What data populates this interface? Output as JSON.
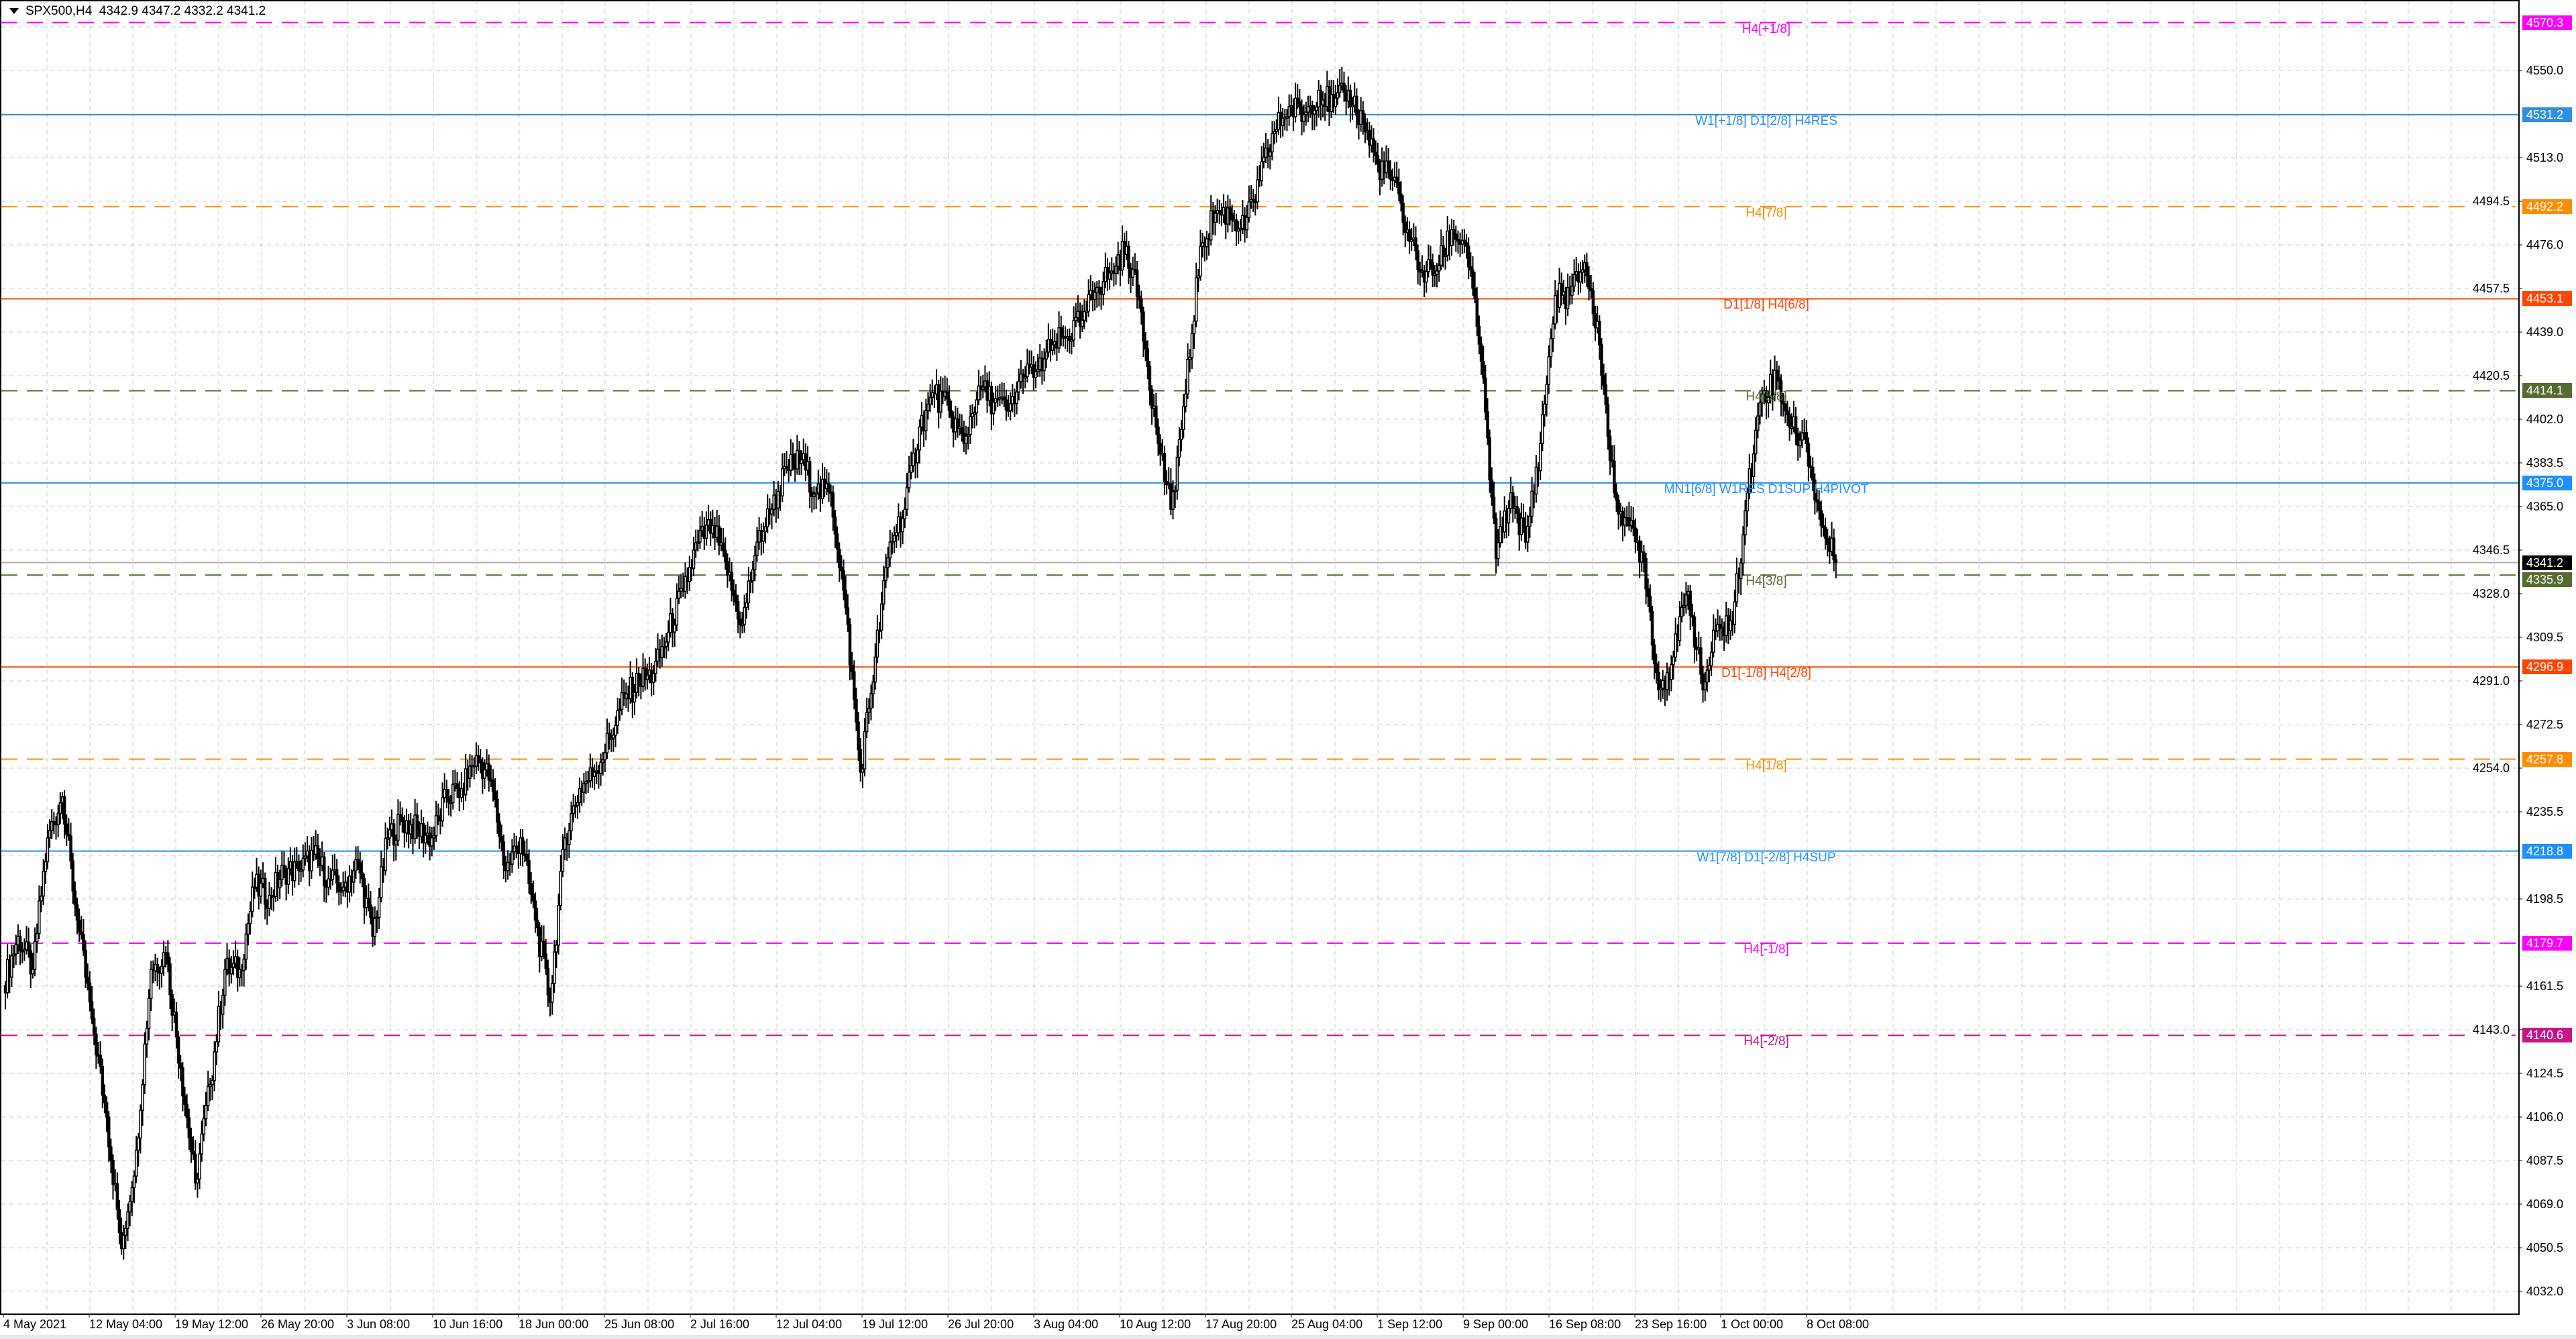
{
  "header": {
    "symbol": "SPX500,H4",
    "ohlc": "4342.9 4347.2 4332.2 4341.2",
    "menu_icon": "triangle-down-icon"
  },
  "chart_data": {
    "type": "candlestick",
    "symbol": "SPX500",
    "timeframe": "H4",
    "ylim": [
      4020,
      4580
    ],
    "grid": true,
    "last_price": 4341.2,
    "last_price_label": "4341.2",
    "approx_close_path": [
      4161.7,
      4182.6,
      4168.6,
      4224.4,
      4241.8,
      4189.5,
      4147.7,
      4105.9,
      4050.1,
      4091.9,
      4168.6,
      4175.6,
      4126.8,
      4078,
      4119.8,
      4168.6,
      4168.6,
      4203.5,
      4200,
      4210.5,
      4210.5,
      4217.4,
      4207,
      4203.5,
      4214,
      4182.6,
      4224.4,
      4231.4,
      4227.9,
      4224.4,
      4241.8,
      4245.3,
      4259.3,
      4248.8,
      4210.5,
      4224.4,
      4189.5,
      4154.7,
      4224.4,
      4245.3,
      4252.3,
      4266.2,
      4283.7,
      4290.6,
      4294.1,
      4311.6,
      4329,
      4349.9,
      4356.9,
      4336,
      4315,
      4349.9,
      4363.8,
      4381.3,
      4384.8,
      4370.8,
      4370.8,
      4322,
      4252.3,
      4301.1,
      4349.9,
      4363.8,
      4398.7,
      4412.7,
      4405.7,
      4391.7,
      4416.1,
      4409.2,
      4405.7,
      4419.6,
      4423.1,
      4433.6,
      4437.1,
      4444,
      4458,
      4464.9,
      4475.4,
      4447.5,
      4398.7,
      4363.8,
      4412.7,
      4475.4,
      4489.3,
      4489.3,
      4482.4,
      4503.3,
      4524.2,
      4534.7,
      4531.2,
      4541.6,
      4534.7,
      4541.6,
      4527.7,
      4510.3,
      4503.3,
      4482.4,
      4464.9,
      4464.9,
      4482.4,
      4475.4,
      4426.6,
      4342.9,
      4370.8,
      4349.9,
      4391.7,
      4454.5,
      4454.5,
      4468.4,
      4433.6,
      4370.8,
      4356.9,
      4342.9,
      4287.2,
      4301.1,
      4329,
      4287.2,
      4315,
      4315,
      4370.8,
      4412.7,
      4419.6,
      4398.7,
      4391.7,
      4356.9,
      4341.2
    ],
    "y_ticks": [
      "4550.0",
      "4513.0",
      "4494.5",
      "4476.0",
      "4457.5",
      "4439.0",
      "4420.5",
      "4402.0",
      "4383.5",
      "4365.0",
      "4346.5",
      "4328.0",
      "4309.5",
      "4291.0",
      "4272.5",
      "4254.0",
      "4235.5",
      "4198.5",
      "4161.5",
      "4143.0",
      "4124.5",
      "4106.0",
      "4087.5",
      "4069.0",
      "4050.5",
      "4032.0"
    ],
    "x_ticks": [
      "4 May 2021",
      "12 May 04:00",
      "19 May 12:00",
      "26 May 20:00",
      "3 Jun 08:00",
      "10 Jun 16:00",
      "18 Jun 00:00",
      "25 Jun 08:00",
      "2 Jul 16:00",
      "12 Jul 04:00",
      "19 Jul 12:00",
      "26 Jul 20:00",
      "3 Aug 04:00",
      "10 Aug 12:00",
      "17 Aug 20:00",
      "25 Aug 04:00",
      "1 Sep 12:00",
      "9 Sep 00:00",
      "16 Sep 08:00",
      "23 Sep 16:00",
      "1 Oct 00:00",
      "8 Oct 08:00"
    ],
    "levels": [
      {
        "price": 4570.3,
        "price_label": "4570.3",
        "label": "H4[+1/8]",
        "color": "#ff00ff",
        "style": "dashed"
      },
      {
        "price": 4531.2,
        "price_label": "4531.2",
        "label": "W1[+1/8] D1[2/8] H4RES",
        "color": "#2f8fe0",
        "style": "solid"
      },
      {
        "price": 4492.2,
        "price_label": "4492.2",
        "label": "H4[7/8]",
        "color": "#ff8c00",
        "style": "dashed"
      },
      {
        "price": 4453.1,
        "price_label": "4453.1",
        "label": "D1[1/8] H4[6/8]",
        "color": "#ff4500",
        "style": "solid"
      },
      {
        "price": 4414.1,
        "price_label": "4414.1",
        "label": "H4[5/8]",
        "color": "#556b2f",
        "style": "dashed"
      },
      {
        "price": 4375.0,
        "price_label": "4375.0",
        "label": "MN1[6/8] W1RES D1SUP H4PIVOT",
        "color": "#1e90ff",
        "style": "solid"
      },
      {
        "price": 4335.9,
        "price_label": "4335.9",
        "label": "H4[3/8]",
        "color": "#556b2f",
        "style": "dashed"
      },
      {
        "price": 4296.9,
        "price_label": "4296.9",
        "label": "D1[-1/8] H4[2/8]",
        "color": "#ff4500",
        "style": "solid"
      },
      {
        "price": 4257.8,
        "price_label": "4257.8",
        "label": "H4[1/8]",
        "color": "#ff8c00",
        "style": "dashed"
      },
      {
        "price": 4218.8,
        "price_label": "4218.8",
        "label": "W1[7/8] D1[-2/8] H4SUP",
        "color": "#1e90ff",
        "style": "solid"
      },
      {
        "price": 4179.7,
        "price_label": "4179.7",
        "label": "H4[-1/8]",
        "color": "#ff00ff",
        "style": "dashed"
      },
      {
        "price": 4140.6,
        "price_label": "4140.6",
        "label": "H4[-2/8]",
        "color": "#c71585",
        "style": "dashed"
      }
    ]
  }
}
